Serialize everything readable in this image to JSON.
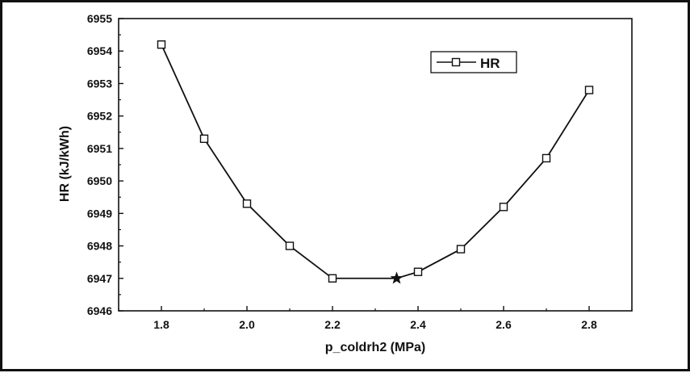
{
  "chart_data": {
    "type": "line",
    "title": "",
    "xlabel": "p_coldrh2 (MPa)",
    "ylabel": "HR (kJ/kWh)",
    "xlim": [
      1.7,
      2.9
    ],
    "ylim": [
      6946,
      6955
    ],
    "xticks": [
      1.8,
      2.0,
      2.2,
      2.4,
      2.6,
      2.8
    ],
    "xtick_labels": [
      "1.8",
      "2.0",
      "2.2",
      "2.4",
      "2.6",
      "2.8"
    ],
    "yticks": [
      6946,
      6947,
      6948,
      6949,
      6950,
      6951,
      6952,
      6953,
      6954,
      6955
    ],
    "ytick_labels": [
      "6946",
      "6947",
      "6948",
      "6949",
      "6950",
      "6951",
      "6952",
      "6953",
      "6954",
      "6955"
    ],
    "grid": false,
    "legend_position": "top-right",
    "series": [
      {
        "name": "HR",
        "marker": "square",
        "color": "#111111",
        "x": [
          1.8,
          1.9,
          2.0,
          2.1,
          2.2,
          2.35,
          2.4,
          2.5,
          2.6,
          2.7,
          2.8
        ],
        "y": [
          6954.2,
          6951.3,
          6949.3,
          6948.0,
          6947.0,
          6947.0,
          6947.2,
          6947.9,
          6949.2,
          6950.7,
          6952.8
        ],
        "markers_at": [
          1.8,
          1.9,
          2.0,
          2.1,
          2.2,
          2.4,
          2.5,
          2.6,
          2.7,
          2.8
        ]
      }
    ],
    "annotations": [
      {
        "type": "star",
        "x": 2.35,
        "y": 6947.0
      }
    ]
  }
}
